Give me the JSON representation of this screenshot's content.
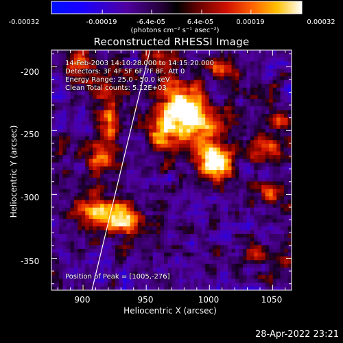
{
  "colorbar": {
    "ticks": [
      "-0.00032",
      "-0.00019",
      "-6.4e-05",
      "6.4e-05",
      "0.00019",
      "0.00032"
    ],
    "tick_values": [
      -0.00032,
      -0.00019,
      -6.4e-05,
      6.4e-05,
      0.00019,
      0.00032
    ],
    "range": [
      -0.00032,
      0.00032
    ],
    "units": "(photons cm⁻² s⁻¹ asec⁻²)"
  },
  "info": {
    "time_range": "14-Feb-2003 14:10:28.000 to 14:15:20.000",
    "detectors": "Detectors: 3F 4F 5F 6F 7F 8F, Att 0",
    "energy": "Energy Range: 25.0 - 50.0 keV",
    "method": "Clean     Total counts: 5.12E+03",
    "peak": "Position of Peak = [1005,-276]"
  },
  "timestamp": "28-Apr-2022 23:21",
  "chart_data": {
    "type": "heatmap",
    "title": "Reconstructed RHESSI Image",
    "xlabel": "Heliocentric X (arcsec)",
    "ylabel": "Heliocentric Y (arcsec)",
    "xlim": [
      875,
      1065
    ],
    "ylim": [
      -375,
      -187
    ],
    "xticks": [
      900,
      950,
      1000,
      1050
    ],
    "yticks": [
      -200,
      -250,
      -300,
      -350
    ],
    "colormap": "blue-black-red-yellow-white",
    "blobs": [
      {
        "x": 897,
        "y": -200,
        "sx": 7,
        "sy": 9,
        "v": 0.6
      },
      {
        "x": 918,
        "y": -218,
        "sx": 8,
        "sy": 8,
        "v": 0.55
      },
      {
        "x": 920,
        "y": -248,
        "sx": 7,
        "sy": 12,
        "v": 0.7
      },
      {
        "x": 915,
        "y": -275,
        "sx": 9,
        "sy": 8,
        "v": 0.6
      },
      {
        "x": 912,
        "y": -315,
        "sx": 14,
        "sy": 10,
        "v": 0.85
      },
      {
        "x": 935,
        "y": -322,
        "sx": 9,
        "sy": 8,
        "v": 0.7
      },
      {
        "x": 958,
        "y": -195,
        "sx": 9,
        "sy": 7,
        "v": 0.45
      },
      {
        "x": 975,
        "y": -230,
        "sx": 14,
        "sy": 14,
        "v": 0.8
      },
      {
        "x": 1005,
        "y": -276,
        "sx": 9,
        "sy": 9,
        "v": 1.0
      },
      {
        "x": 990,
        "y": -250,
        "sx": 16,
        "sy": 14,
        "v": 0.7
      },
      {
        "x": 1010,
        "y": -200,
        "sx": 8,
        "sy": 6,
        "v": 0.55
      },
      {
        "x": 1045,
        "y": -268,
        "sx": 9,
        "sy": 9,
        "v": 0.55
      },
      {
        "x": 1055,
        "y": -240,
        "sx": 6,
        "sy": 10,
        "v": 0.5
      },
      {
        "x": 1048,
        "y": -300,
        "sx": 8,
        "sy": 9,
        "v": 0.5
      },
      {
        "x": 1035,
        "y": -345,
        "sx": 6,
        "sy": 6,
        "v": 0.4
      },
      {
        "x": 960,
        "y": -255,
        "sx": 7,
        "sy": 9,
        "v": 0.5
      },
      {
        "x": 1020,
        "y": -220,
        "sx": 6,
        "sy": 6,
        "v": 0.35
      },
      {
        "x": 1058,
        "y": -350,
        "sx": 5,
        "sy": 5,
        "v": 0.35
      }
    ],
    "limb_line": [
      [
        907,
        -375
      ],
      [
        953,
        -187
      ]
    ]
  }
}
